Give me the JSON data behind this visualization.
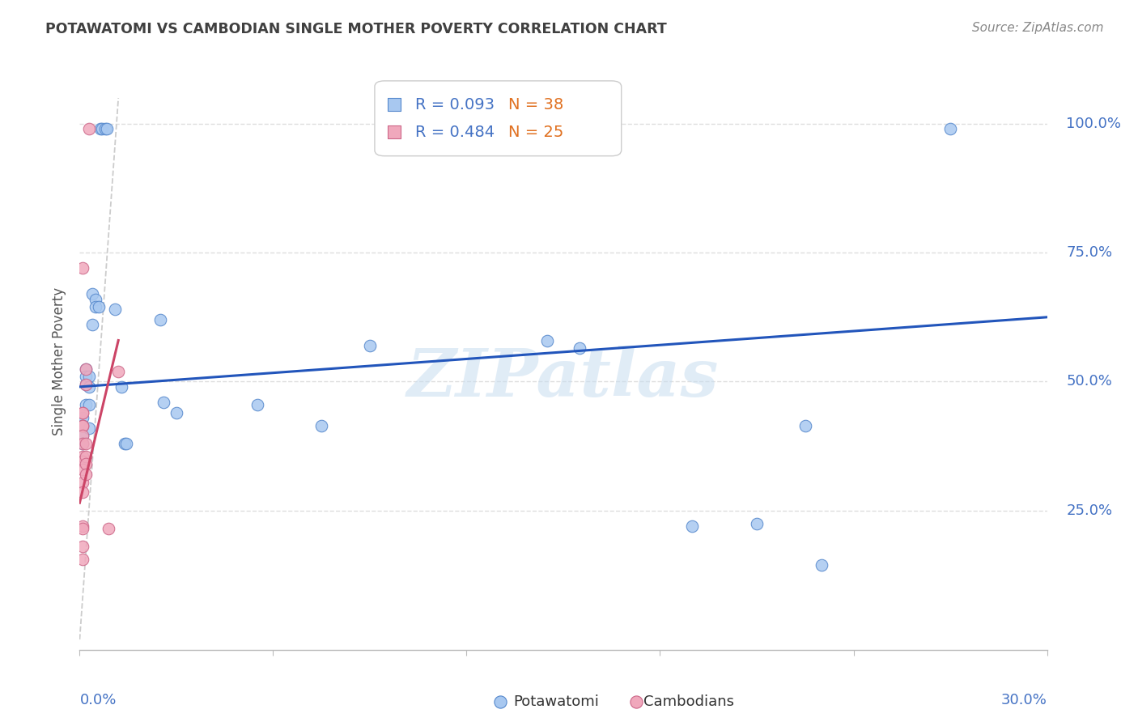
{
  "title": "POTAWATOMI VS CAMBODIAN SINGLE MOTHER POVERTY CORRELATION CHART",
  "source": "Source: ZipAtlas.com",
  "ylabel": "Single Mother Poverty",
  "ytick_labels": [
    "100.0%",
    "75.0%",
    "50.0%",
    "25.0%"
  ],
  "ytick_values": [
    1.0,
    0.75,
    0.5,
    0.25
  ],
  "xlim": [
    0.0,
    0.3
  ],
  "ylim": [
    -0.02,
    1.1
  ],
  "legend_r_blue": "R = 0.093",
  "legend_n_blue": "N = 38",
  "legend_r_pink": "R = 0.484",
  "legend_n_pink": "N = 25",
  "watermark": "ZIPatlas",
  "blue_scatter_x": [
    0.001,
    0.001,
    0.001,
    0.001,
    0.002,
    0.002,
    0.002,
    0.002,
    0.003,
    0.003,
    0.003,
    0.003,
    0.004,
    0.004,
    0.005,
    0.005,
    0.006,
    0.0065,
    0.007,
    0.008,
    0.0085,
    0.011,
    0.013,
    0.014,
    0.0145,
    0.025,
    0.026,
    0.03,
    0.055,
    0.075,
    0.09,
    0.145,
    0.155,
    0.19,
    0.21,
    0.225,
    0.23,
    0.27
  ],
  "blue_scatter_y": [
    0.43,
    0.415,
    0.395,
    0.38,
    0.525,
    0.51,
    0.495,
    0.455,
    0.51,
    0.49,
    0.455,
    0.41,
    0.67,
    0.61,
    0.66,
    0.645,
    0.645,
    0.99,
    0.99,
    0.99,
    0.99,
    0.64,
    0.49,
    0.38,
    0.38,
    0.62,
    0.46,
    0.44,
    0.455,
    0.415,
    0.57,
    0.58,
    0.565,
    0.22,
    0.225,
    0.415,
    0.145,
    0.99
  ],
  "pink_scatter_x": [
    0.001,
    0.001,
    0.001,
    0.001,
    0.001,
    0.001,
    0.001,
    0.001,
    0.001,
    0.001,
    0.001,
    0.001,
    0.001,
    0.001,
    0.001,
    0.001,
    0.002,
    0.002,
    0.002,
    0.002,
    0.002,
    0.002,
    0.003,
    0.009,
    0.012
  ],
  "pink_scatter_y": [
    0.72,
    0.44,
    0.44,
    0.415,
    0.415,
    0.395,
    0.38,
    0.355,
    0.345,
    0.33,
    0.305,
    0.285,
    0.22,
    0.215,
    0.18,
    0.155,
    0.525,
    0.495,
    0.38,
    0.355,
    0.34,
    0.32,
    0.99,
    0.215,
    0.52
  ],
  "blue_line_x": [
    0.0,
    0.3
  ],
  "blue_line_y": [
    0.49,
    0.625
  ],
  "pink_line_x": [
    0.0,
    0.012
  ],
  "pink_line_y": [
    0.265,
    0.58
  ],
  "trend_line_x": [
    0.0,
    0.012
  ],
  "trend_line_y": [
    0.0,
    1.05
  ],
  "blue_color": "#a8c8f0",
  "pink_color": "#f0a8bc",
  "blue_edge_color": "#5588cc",
  "pink_edge_color": "#cc6688",
  "blue_line_color": "#2255bb",
  "pink_line_color": "#cc4466",
  "trend_line_color": "#cccccc",
  "grid_color": "#dedede",
  "bg_color": "#ffffff",
  "text_color_blue": "#4472c4",
  "text_color_orange": "#e07020",
  "text_color_title": "#404040",
  "text_color_axis": "#555555",
  "scatter_size": 110,
  "scatter_alpha": 0.85
}
